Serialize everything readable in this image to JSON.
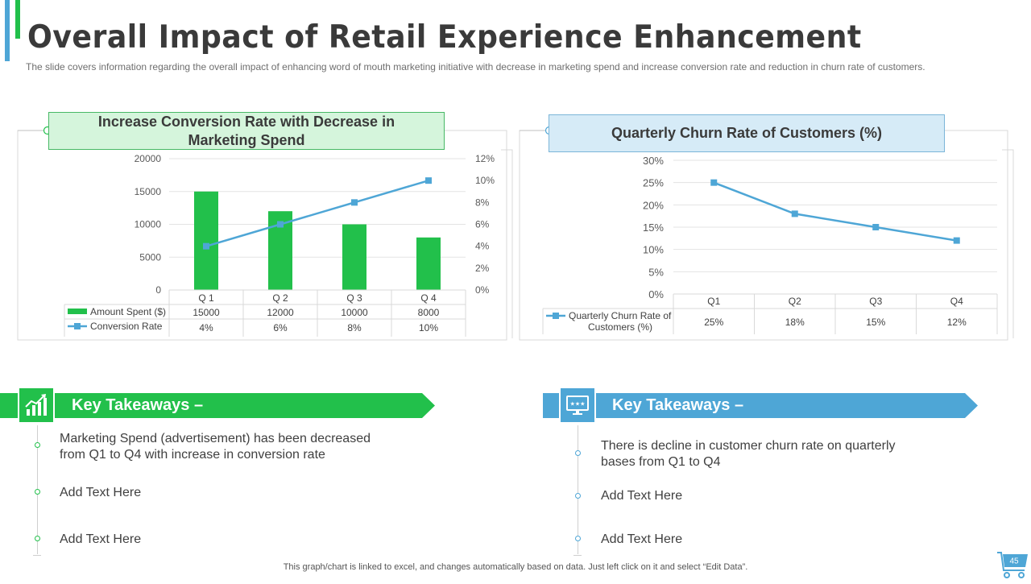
{
  "title": "Overall Impact of Retail Experience Enhancement",
  "subtitle": "The slide covers information regarding the overall impact of enhancing word of mouth marketing initiative with decrease in marketing spend and increase conversion rate and reduction in churn rate of customers.",
  "colors": {
    "green": "#22c04b",
    "blue": "#4ea6d6",
    "text": "#404040"
  },
  "chart_data": [
    {
      "type": "bar",
      "title": "Increase Conversion Rate with Decrease in Marketing Spend",
      "categories": [
        "Q 1",
        "Q 2",
        "Q 3",
        "Q 4"
      ],
      "series": [
        {
          "name": "Amount Spent ($)",
          "type": "bar",
          "axis": "left",
          "values": [
            15000,
            12000,
            10000,
            8000
          ],
          "labels": [
            "15000",
            "12000",
            "10000",
            "8000"
          ]
        },
        {
          "name": "Conversion Rate",
          "type": "line",
          "axis": "right",
          "values": [
            4,
            6,
            8,
            10
          ],
          "labels": [
            "4%",
            "6%",
            "8%",
            "10%"
          ]
        }
      ],
      "y_left": {
        "min": 0,
        "max": 20000,
        "ticks": [
          "0",
          "5000",
          "10000",
          "15000",
          "20000"
        ]
      },
      "y_right": {
        "min": 0,
        "max": 12,
        "ticks": [
          "0%",
          "2%",
          "4%",
          "6%",
          "8%",
          "10%",
          "12%"
        ]
      },
      "data_table": true,
      "grid": true
    },
    {
      "type": "line",
      "title": "Quarterly Churn Rate of Customers (%)",
      "categories": [
        "Q1",
        "Q2",
        "Q3",
        "Q4"
      ],
      "series": [
        {
          "name": "Quarterly Churn Rate of Customers (%)",
          "values": [
            25,
            18,
            15,
            12
          ],
          "labels": [
            "25%",
            "18%",
            "15%",
            "12%"
          ]
        }
      ],
      "y": {
        "min": 0,
        "max": 30,
        "ticks": [
          "0%",
          "5%",
          "10%",
          "15%",
          "20%",
          "25%",
          "30%"
        ]
      },
      "data_table": true,
      "grid": true
    }
  ],
  "takeaways_left": {
    "heading": "Key Takeaways –",
    "items": [
      "Marketing Spend (advertisement) has been decreased from Q1 to Q4 with increase in conversion rate",
      "Add Text Here",
      "Add Text Here"
    ]
  },
  "takeaways_right": {
    "heading": "Key Takeaways –",
    "items": [
      "There is decline in customer churn rate on quarterly bases from Q1 to Q4",
      "Add Text Here",
      "Add Text Here"
    ]
  },
  "footer": "This graph/chart is linked to excel, and changes automatically based on data. Just left click on it and select “Edit Data”.",
  "page_number": "45",
  "icons": [
    "growth-chart-icon",
    "monitor-rating-icon",
    "shopping-cart-icon"
  ]
}
